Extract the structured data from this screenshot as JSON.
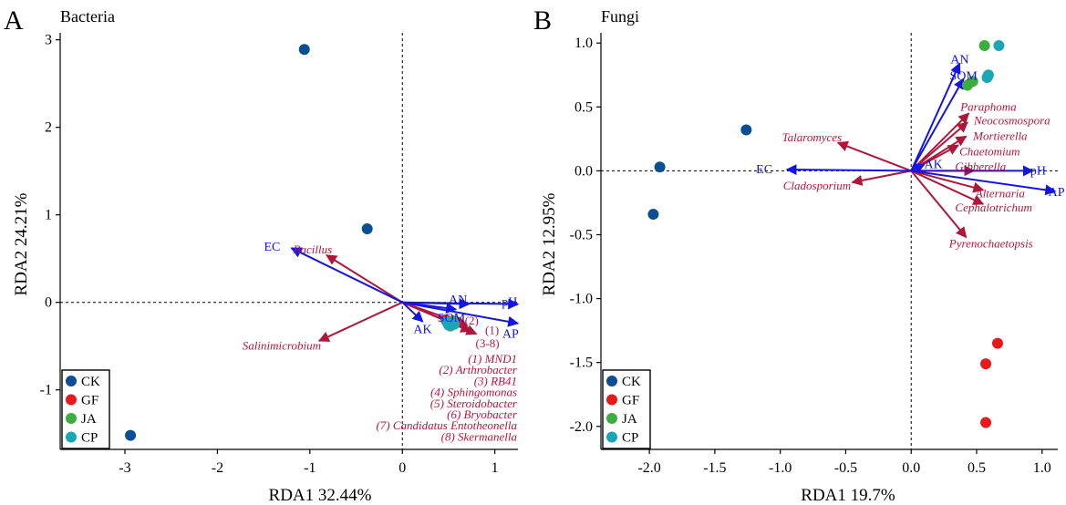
{
  "colors": {
    "env_arrow": "#1414e6",
    "taxon_arrow": "#b0163a",
    "CK": "#0a4f94",
    "GF": "#e8191b",
    "JA": "#3cae3f",
    "CP": "#1ba6b8"
  },
  "chart_data": [
    {
      "type": "scatter",
      "panel_letter": "A",
      "title": "Bacteria",
      "xlabel": "RDA1  32.44%",
      "ylabel": "RDA2  24.21%",
      "xlim": [
        -3.7,
        1.25
      ],
      "ylim": [
        -1.68,
        3.08
      ],
      "xticks": [
        -3,
        -2,
        -1,
        0,
        1
      ],
      "xtick_labels": [
        "-3",
        "-2",
        "-1",
        "0",
        "1"
      ],
      "yticks": [
        -1,
        0,
        1,
        2,
        3
      ],
      "ytick_labels": [
        "-1",
        "0",
        "1",
        "2",
        "3"
      ],
      "legend": [
        "CK",
        "GF",
        "JA",
        "CP"
      ],
      "points": [
        {
          "group": "CK",
          "x": -1.06,
          "y": 2.89
        },
        {
          "group": "CK",
          "x": -0.38,
          "y": 0.84
        },
        {
          "group": "CK",
          "x": -2.94,
          "y": -1.52
        },
        {
          "group": "GF",
          "x": 0.47,
          "y": -0.2
        },
        {
          "group": "GF",
          "x": 0.53,
          "y": -0.24
        },
        {
          "group": "GF",
          "x": 0.58,
          "y": -0.22
        },
        {
          "group": "JA",
          "x": 0.5,
          "y": -0.25
        },
        {
          "group": "JA",
          "x": 0.55,
          "y": -0.21
        },
        {
          "group": "JA",
          "x": 0.52,
          "y": -0.27
        },
        {
          "group": "CP",
          "x": 0.5,
          "y": -0.26
        },
        {
          "group": "CP",
          "x": 0.56,
          "y": -0.25
        },
        {
          "group": "CP",
          "x": 0.48,
          "y": -0.22
        }
      ],
      "env_vectors": [
        {
          "label": "EC",
          "x": -1.2,
          "y": 0.62,
          "lx": -1.32,
          "ly": 0.63
        },
        {
          "label": "AN",
          "x": 0.72,
          "y": -0.02,
          "lx": 0.6,
          "ly": 0.03
        },
        {
          "label": "pH",
          "x": 1.25,
          "y": -0.02,
          "lx": 1.16,
          "ly": 0.0
        },
        {
          "label": "AP",
          "x": 1.25,
          "y": -0.24,
          "lx": 1.17,
          "ly": -0.36
        },
        {
          "label": "SOM",
          "x": 0.58,
          "y": -0.08,
          "lx": 0.53,
          "ly": -0.18
        },
        {
          "label": "AK",
          "x": 0.22,
          "y": -0.22,
          "lx": 0.22,
          "ly": -0.31
        }
      ],
      "taxon_vectors": [
        {
          "label": "Bacillus",
          "x": -0.82,
          "y": 0.54,
          "lx": -0.76,
          "ly": 0.6
        },
        {
          "label": "Salinimicrobium",
          "x": -0.9,
          "y": -0.44,
          "lx": -0.88,
          "ly": -0.5
        },
        {
          "label": "(1)",
          "x": 0.74,
          "y": -0.33,
          "lx": 0.97,
          "ly": -0.32,
          "plain": true
        },
        {
          "label": "(2)",
          "x": 0.7,
          "y": -0.26,
          "lx": 0.75,
          "ly": -0.21,
          "plain": true
        },
        {
          "label": "(3-8)",
          "x": 0.8,
          "y": -0.36,
          "lx": 0.92,
          "ly": -0.47,
          "plain": true
        }
      ],
      "annotations": [
        "(1) MND1",
        "(2) Arthrobacter",
        "(3) RB41",
        "(4) Sphingomonas",
        "(5) Steroidobacter",
        "(6) Bryobacter",
        "(7) Candidatus  Entotheonella",
        "(8) Skermanella"
      ]
    },
    {
      "type": "scatter",
      "panel_letter": "B",
      "title": "Fungi",
      "xlabel": "RDA1  19.7%",
      "ylabel": "RDA2  12.95%",
      "xlim": [
        -2.37,
        1.12
      ],
      "ylim": [
        -2.18,
        1.08
      ],
      "xticks": [
        -2.0,
        -1.5,
        -1.0,
        -0.5,
        0.0,
        0.5,
        1.0
      ],
      "xtick_labels": [
        "-2.0",
        "-1.5",
        "-1.0",
        "-0.5",
        "0.0",
        "0.5",
        "1.0"
      ],
      "yticks": [
        -2.0,
        -1.5,
        -1.0,
        -0.5,
        0.0,
        0.5,
        1.0
      ],
      "ytick_labels": [
        "-2.0",
        "-1.5",
        "-1.0",
        "-0.5",
        "0.0",
        "0.5",
        "1.0"
      ],
      "legend": [
        "CK",
        "GF",
        "JA",
        "CP"
      ],
      "points": [
        {
          "group": "CK",
          "x": -1.26,
          "y": 0.32
        },
        {
          "group": "CK",
          "x": -1.92,
          "y": 0.03
        },
        {
          "group": "CK",
          "x": -1.97,
          "y": -0.34
        },
        {
          "group": "GF",
          "x": 0.66,
          "y": -1.35
        },
        {
          "group": "GF",
          "x": 0.57,
          "y": -1.51
        },
        {
          "group": "GF",
          "x": 0.57,
          "y": -1.97
        },
        {
          "group": "JA",
          "x": 0.56,
          "y": 0.98
        },
        {
          "group": "JA",
          "x": 0.43,
          "y": 0.67
        },
        {
          "group": "JA",
          "x": 0.47,
          "y": 0.7
        },
        {
          "group": "CP",
          "x": 0.67,
          "y": 0.98
        },
        {
          "group": "CP",
          "x": 0.58,
          "y": 0.73
        },
        {
          "group": "CP",
          "x": 0.59,
          "y": 0.75
        }
      ],
      "env_vectors": [
        {
          "label": "AN",
          "x": 0.37,
          "y": 0.84,
          "lx": 0.37,
          "ly": 0.87
        },
        {
          "label": "SOM",
          "x": 0.4,
          "y": 0.72,
          "lx": 0.4,
          "ly": 0.74
        },
        {
          "label": "AK",
          "x": 0.1,
          "y": 0.05,
          "lx": 0.17,
          "ly": 0.05
        },
        {
          "label": "pH",
          "x": 0.93,
          "y": 0.0,
          "lx": 0.97,
          "ly": 0.0
        },
        {
          "label": "AP",
          "x": 1.1,
          "y": -0.16,
          "lx": 1.11,
          "ly": -0.17
        },
        {
          "label": "EC",
          "x": -0.95,
          "y": 0.01,
          "lx": -1.06,
          "ly": 0.01
        }
      ],
      "taxon_vectors": [
        {
          "label": "Talaromyces",
          "x": -0.56,
          "y": 0.22,
          "lx": -0.53,
          "ly": 0.26
        },
        {
          "label": "Cladosporium",
          "x": -0.45,
          "y": -0.09,
          "lx": -0.46,
          "ly": -0.12
        },
        {
          "label": "Paraphoma",
          "x": 0.44,
          "y": 0.45,
          "lx": 0.59,
          "ly": 0.5
        },
        {
          "label": "Neocosmospora",
          "x": 0.43,
          "y": 0.38,
          "lx": 0.77,
          "ly": 0.39
        },
        {
          "label": "Mortierella",
          "x": 0.42,
          "y": 0.27,
          "lx": 0.68,
          "ly": 0.27
        },
        {
          "label": "Chaetomium",
          "x": 0.36,
          "y": 0.2,
          "lx": 0.6,
          "ly": 0.15
        },
        {
          "label": "Gibberella",
          "x": 0.48,
          "y": 0.0,
          "lx": 0.53,
          "ly": 0.03
        },
        {
          "label": "Alternaria",
          "x": 0.55,
          "y": -0.15,
          "lx": 0.68,
          "ly": -0.18
        },
        {
          "label": "Cephalotrichum",
          "x": 0.55,
          "y": -0.26,
          "lx": 0.63,
          "ly": -0.29
        },
        {
          "label": "Pyrenochaetopsis",
          "x": 0.42,
          "y": -0.52,
          "lx": 0.61,
          "ly": -0.57
        }
      ]
    }
  ]
}
